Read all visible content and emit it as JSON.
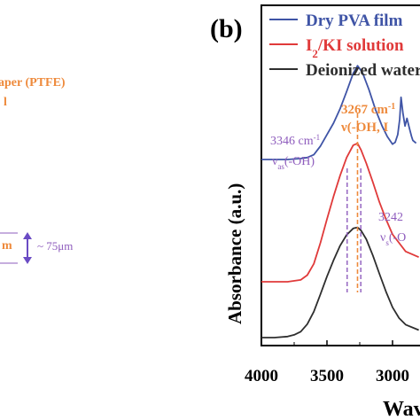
{
  "left_panel": {
    "text_paper": "aper (PTFE)",
    "text_h": "l",
    "text_m": "m",
    "text_thickness": "~ 75μm"
  },
  "colors": {
    "dry_pva": "#3f54a6",
    "i2_ki": "#e03a3a",
    "water": "#2e2e2e",
    "orange": "#ee8a3c",
    "purple": "#8e5cbd",
    "thickness_arrow": "#6a4bc4"
  },
  "chart_data": {
    "type": "line",
    "panel_label": "(b)",
    "xlabel": "Wav",
    "ylabel": "Absorbance (a.u.)",
    "x_ticks": [
      4000,
      3500,
      3000
    ],
    "xlim": [
      4000,
      2650
    ],
    "x_reversed": true,
    "legend_position": "top",
    "series": [
      {
        "name": "Dry PVA film",
        "color": "#3f54a6",
        "x": [
          4000,
          3900,
          3800,
          3700,
          3650,
          3600,
          3550,
          3500,
          3450,
          3400,
          3350,
          3300,
          3267,
          3230,
          3180,
          3130,
          3080,
          3040,
          3000,
          2980,
          2960,
          2945,
          2935,
          2920,
          2905,
          2890,
          2870,
          2855,
          2845,
          2820,
          2780,
          2740,
          2700
        ],
        "y": [
          0.5,
          0.5,
          0.5,
          0.51,
          0.52,
          0.55,
          0.64,
          0.76,
          0.88,
          1.03,
          1.21,
          1.4,
          1.48,
          1.41,
          1.23,
          1.02,
          0.85,
          0.74,
          0.66,
          0.68,
          0.76,
          0.92,
          1.15,
          0.98,
          0.85,
          0.93,
          0.82,
          0.74,
          0.7,
          0.67,
          0.66,
          0.64,
          0.63
        ]
      },
      {
        "name": "I2/KI solution",
        "color": "#e03a3a",
        "x": [
          4000,
          3900,
          3800,
          3700,
          3650,
          3600,
          3550,
          3500,
          3450,
          3400,
          3350,
          3300,
          3267,
          3240,
          3200,
          3150,
          3100,
          3050,
          3000,
          2900,
          2800,
          2700
        ],
        "y": [
          0.0,
          0.0,
          0.0,
          0.02,
          0.07,
          0.19,
          0.41,
          0.66,
          0.9,
          1.12,
          1.31,
          1.44,
          1.46,
          1.39,
          1.25,
          1.05,
          0.84,
          0.66,
          0.5,
          0.32,
          0.26,
          0.24
        ]
      },
      {
        "name": "Deionized water",
        "color": "#2e2e2e",
        "x": [
          4000,
          3900,
          3800,
          3750,
          3700,
          3650,
          3600,
          3550,
          3500,
          3450,
          3400,
          3350,
          3300,
          3267,
          3240,
          3200,
          3150,
          3100,
          3050,
          3000,
          2950,
          2900,
          2800,
          2700
        ],
        "y": [
          0.0,
          0.0,
          0.02,
          0.05,
          0.11,
          0.25,
          0.48,
          0.8,
          1.13,
          1.43,
          1.7,
          1.9,
          2.02,
          2.04,
          1.98,
          1.82,
          1.52,
          1.18,
          0.85,
          0.56,
          0.36,
          0.24,
          0.14,
          0.1
        ]
      }
    ],
    "annotations": [
      {
        "text": "3267 cm",
        "sup": "-1",
        "position": 3267,
        "color": "#ee8a3c",
        "line": true
      },
      {
        "text": "ν(-OH, I",
        "color": "#ee8a3c"
      },
      {
        "text": "3346 cm",
        "sup": "-1",
        "position": 3346,
        "color": "#8e5cbd",
        "line": true
      },
      {
        "text": "ν",
        "sub": "as",
        "tail": "(-OH)",
        "color": "#8e5cbd"
      },
      {
        "text": "3242",
        "color": "#8e5cbd",
        "position": 3242,
        "line": true
      },
      {
        "text": "ν",
        "sub": "s",
        "tail": "(-O",
        "color": "#8e5cbd"
      }
    ]
  }
}
